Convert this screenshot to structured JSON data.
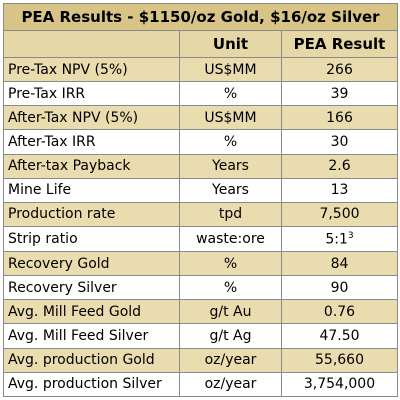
{
  "table": {
    "title": "PEA Results - $1150/oz Gold, $16/oz Silver",
    "header": [
      "",
      "Unit",
      "PEA Result"
    ],
    "rows": [
      [
        "Pre-Tax NPV (5%)",
        "US$MM",
        "266"
      ],
      [
        "Pre-Tax IRR",
        "%",
        "39"
      ],
      [
        "After-Tax NPV (5%)",
        "US$MM",
        "166"
      ],
      [
        "After-Tax IRR",
        "%",
        "30"
      ],
      [
        "After-tax Payback",
        "Years",
        "2.6"
      ],
      [
        "Mine Life",
        "Years",
        "13"
      ],
      [
        "Production rate",
        "tpd",
        "7,500"
      ],
      [
        "Strip ratio",
        "waste:ore",
        "5:1"
      ],
      [
        "Recovery Gold",
        "%",
        "84"
      ],
      [
        "Recovery Silver",
        "%",
        "90"
      ],
      [
        "Avg. Mill Feed Gold",
        "g/t Au",
        "0.76"
      ],
      [
        "Avg. Mill Feed Silver",
        "g/t Ag",
        "47.50"
      ],
      [
        "Avg. production Gold",
        "oz/year",
        "55,660"
      ],
      [
        "Avg. production Silver",
        "oz/year",
        "3,754,000"
      ]
    ],
    "strip_ratio_footnote": "3"
  }
}
